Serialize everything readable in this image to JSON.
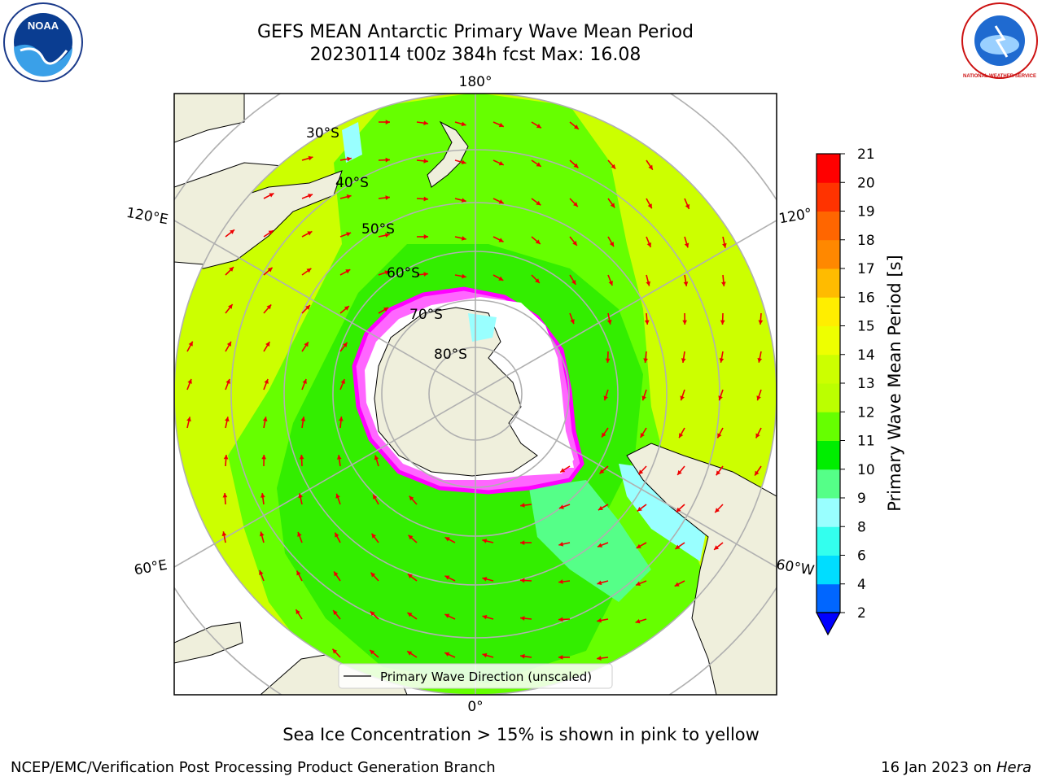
{
  "title": {
    "line1": "GEFS MEAN Antarctic Primary Wave Mean Period",
    "line2": "20230114 t00z 384h fcst   Max: 16.08"
  },
  "logos": {
    "left": {
      "icon": "noaa-logo",
      "text": "NOAA"
    },
    "right": {
      "icon": "nws-logo",
      "text": "NATIONAL WEATHER SERVICE"
    }
  },
  "map": {
    "projection": "south-polar-stereographic",
    "lon_labels": {
      "top": "180°",
      "bottom": "0°",
      "upper_left": "120°E",
      "lower_left": "60°E",
      "upper_right": "120°",
      "lower_right": "60°W"
    },
    "lat_labels": [
      "30°S",
      "40°S",
      "50°S",
      "60°S",
      "70°S",
      "80°S"
    ],
    "legend": {
      "label": "Primary Wave Direction (unscaled)"
    },
    "colors": {
      "land": "#efefdc",
      "ocean_main": "#c8ff00",
      "ocean_mid": "#66ff00",
      "ocean_low": "#33ff00",
      "ice_edge": "#ff00ff",
      "arrows": "#ff0000",
      "grid": "#b0b0b0"
    }
  },
  "colorbar": {
    "label": "Primary Wave Mean Period [s]",
    "ticks": [
      "2",
      "4",
      "6",
      "8",
      "9",
      "10",
      "11",
      "12",
      "13",
      "14",
      "15",
      "16",
      "17",
      "18",
      "19",
      "20",
      "21"
    ],
    "colors": [
      "#0066ff",
      "#00ddff",
      "#33ffee",
      "#99ffff",
      "#55ff88",
      "#00ee00",
      "#66ff00",
      "#bbff00",
      "#ccff00",
      "#eeff00",
      "#ffee00",
      "#ffbb00",
      "#ff8800",
      "#ff6600",
      "#ff3300",
      "#ff0000"
    ],
    "under_color": "#0000ff"
  },
  "caption": "Sea Ice Concentration > 15% is shown in pink to yellow",
  "footer": {
    "left": "NCEP/EMC/Verification Post Processing Product Generation Branch",
    "right_date": "16 Jan 2023 on ",
    "right_host": "Hera"
  }
}
